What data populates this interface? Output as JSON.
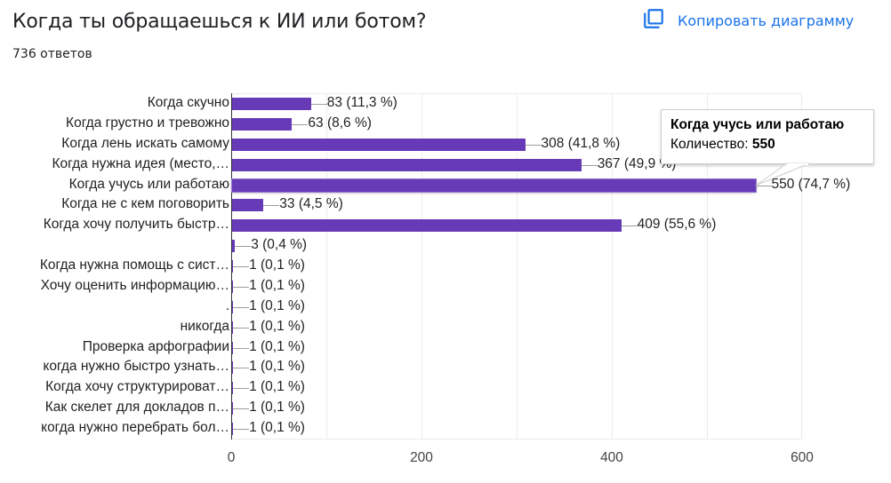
{
  "header": {
    "title": "Когда ты обращаешься к ИИ или ботом?",
    "responses": "736 ответов",
    "copy_button": {
      "label": "Копировать диаграмму",
      "icon": "copy-icon"
    }
  },
  "colors": {
    "bar": "#673ab7",
    "accent": "#1a73e8"
  },
  "tooltip": {
    "title": "Когда учусь или работаю",
    "label": "Количество: ",
    "value": "550"
  },
  "chart_data": {
    "type": "bar",
    "orientation": "horizontal",
    "title": "Когда ты обращаешься к ИИ или ботом?",
    "subtitle": "736 ответов",
    "xlabel": "",
    "ylabel": "",
    "xlim": [
      0,
      600
    ],
    "x_ticks": [
      "0",
      "200",
      "400",
      "600"
    ],
    "grid": true,
    "categories": [
      "Когда скучно",
      "Когда грустно и тревожно",
      "Когда лень искать самому",
      "Когда нужна идея (место,…",
      "Когда учусь или работаю",
      "Когда не с кем поговорить",
      "Когда хочу получить быстр…",
      "",
      "Когда нужна помощь с сист…",
      "Хочу оценить информацию…",
      ".",
      "никогда",
      "Проверка арфографии",
      "когда нужно быстро узнать…",
      "Когда хочу структурироват…",
      "Как скелет для докладов п…",
      "когда нужно перебрать бол…"
    ],
    "values": [
      83,
      63,
      308,
      367,
      550,
      33,
      409,
      3,
      1,
      1,
      1,
      1,
      1,
      1,
      1,
      1,
      1
    ],
    "labels": [
      "83 (11,3 %)",
      "63 (8,6 %)",
      "308 (41,8 %)",
      "367 (49,9 %)",
      "550 (74,7 %)",
      "33 (4,5 %)",
      "409 (55,6 %)",
      "3 (0,4 %)",
      "1 (0,1 %)",
      "1 (0,1 %)",
      "1 (0,1 %)",
      "1 (0,1 %)",
      "1 (0,1 %)",
      "1 (0,1 %)",
      "1 (0,1 %)",
      "1 (0,1 %)",
      "1 (0,1 %)"
    ],
    "highlighted_index": 4
  }
}
